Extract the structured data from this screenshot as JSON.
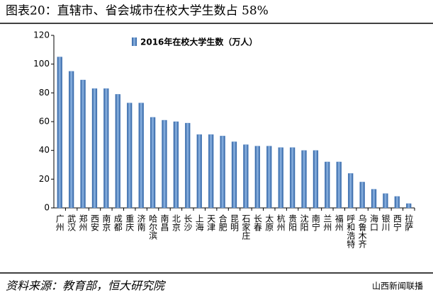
{
  "chart_data": {
    "type": "bar",
    "title": "图表20：直辖市、省会城市在校大学生数占 58%",
    "source": "资料来源：教育部，恒大研究院",
    "watermark": "山西新闻联播",
    "categories": [
      "广州",
      "武汉",
      "郑州",
      "西安",
      "南京",
      "成都",
      "重庆",
      "济南",
      "哈尔滨",
      "南昌",
      "北京",
      "长沙",
      "上海",
      "天津",
      "合肥",
      "昆明",
      "石家庄",
      "长春",
      "太原",
      "杭州",
      "贵阳",
      "沈阳",
      "南宁",
      "兰州",
      "福州",
      "呼和浩特",
      "乌鲁木齐",
      "海口",
      "银川",
      "西宁",
      "拉萨"
    ],
    "series": [
      {
        "name": "2016年在校大学生数（万人）",
        "color": "#4a7fc0",
        "values": [
          105,
          95,
          89,
          83,
          83,
          79,
          73,
          73,
          63,
          61,
          60,
          59,
          51,
          51,
          50,
          46,
          44,
          43,
          43,
          42,
          42,
          40,
          40,
          32,
          32,
          24,
          18,
          13,
          10,
          8,
          3
        ]
      }
    ],
    "ylim": [
      0,
      120
    ],
    "yticks": [
      0,
      20,
      40,
      60,
      80,
      100,
      120
    ],
    "grid": false,
    "legend": "top"
  }
}
